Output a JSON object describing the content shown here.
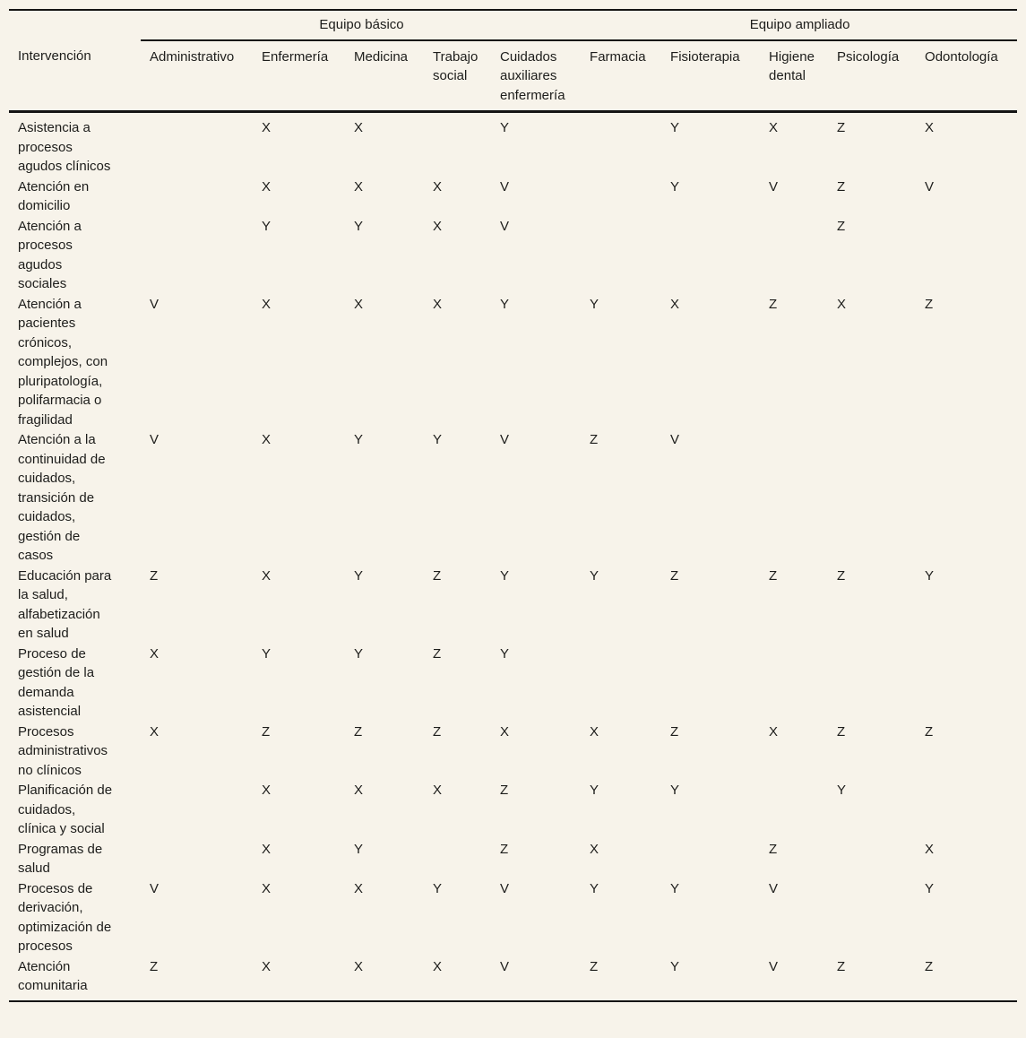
{
  "table": {
    "row_header_label": "Intervención",
    "groups": [
      {
        "label": "Equipo básico",
        "span": 5
      },
      {
        "label": "Equipo ampliado",
        "span": 5
      }
    ],
    "columns": [
      "Administrativo",
      "Enfermería",
      "Medicina",
      "Trabajo social",
      "Cuidados auxiliares enfermería",
      "Farmacia",
      "Fisioterapia",
      "Higiene dental",
      "Psicología",
      "Odontología"
    ],
    "rows": [
      {
        "label": "Asistencia a procesos agudos clínicos",
        "cells": [
          "",
          "X",
          "X",
          "",
          "Y",
          "",
          "Y",
          "X",
          "Z",
          "X"
        ]
      },
      {
        "label": "Atención en domicilio",
        "cells": [
          "",
          "X",
          "X",
          "X",
          "V",
          "",
          "Y",
          "V",
          "Z",
          "V"
        ]
      },
      {
        "label": "Atención a procesos agudos sociales",
        "cells": [
          "",
          "Y",
          "Y",
          "X",
          "V",
          "",
          "",
          "",
          "Z",
          ""
        ]
      },
      {
        "label": "Atención a pacientes crónicos, complejos, con pluripatología, polifarmacia o fragilidad",
        "cells": [
          "V",
          "X",
          "X",
          "X",
          "Y",
          "Y",
          "X",
          "Z",
          "X",
          "Z"
        ]
      },
      {
        "label": "Atención a la continuidad de cuidados, transición de cuidados, gestión de casos",
        "cells": [
          "V",
          "X",
          "Y",
          "Y",
          "V",
          "Z",
          "V",
          "",
          "",
          ""
        ]
      },
      {
        "label": "Educación para la salud, alfabetización en salud",
        "cells": [
          "Z",
          "X",
          "Y",
          "Z",
          "Y",
          "Y",
          "Z",
          "Z",
          "Z",
          "Y"
        ]
      },
      {
        "label": "Proceso de gestión de la demanda asistencial",
        "cells": [
          "X",
          "Y",
          "Y",
          "Z",
          "Y",
          "",
          "",
          "",
          "",
          ""
        ]
      },
      {
        "label": "Procesos administrativos no clínicos",
        "cells": [
          "X",
          "Z",
          "Z",
          "Z",
          "X",
          "X",
          "Z",
          "X",
          "Z",
          "Z"
        ]
      },
      {
        "label": "Planificación de cuidados, clínica y social",
        "cells": [
          "",
          "X",
          "X",
          "X",
          "Z",
          "Y",
          "Y",
          "",
          "Y",
          ""
        ]
      },
      {
        "label": "Programas de salud",
        "cells": [
          "",
          "X",
          "Y",
          "",
          "Z",
          "X",
          "",
          "Z",
          "",
          "X"
        ]
      },
      {
        "label": "Procesos de derivación, optimización de procesos",
        "cells": [
          "V",
          "X",
          "X",
          "Y",
          "V",
          "Y",
          "Y",
          "V",
          "",
          "Y"
        ]
      },
      {
        "label": "Atención comunitaria",
        "cells": [
          "Z",
          "X",
          "X",
          "X",
          "V",
          "Z",
          "Y",
          "V",
          "Z",
          "Z"
        ]
      }
    ],
    "colors": {
      "background": "#f7f3ea",
      "text": "#1d1d1b",
      "rule": "#141414"
    }
  }
}
